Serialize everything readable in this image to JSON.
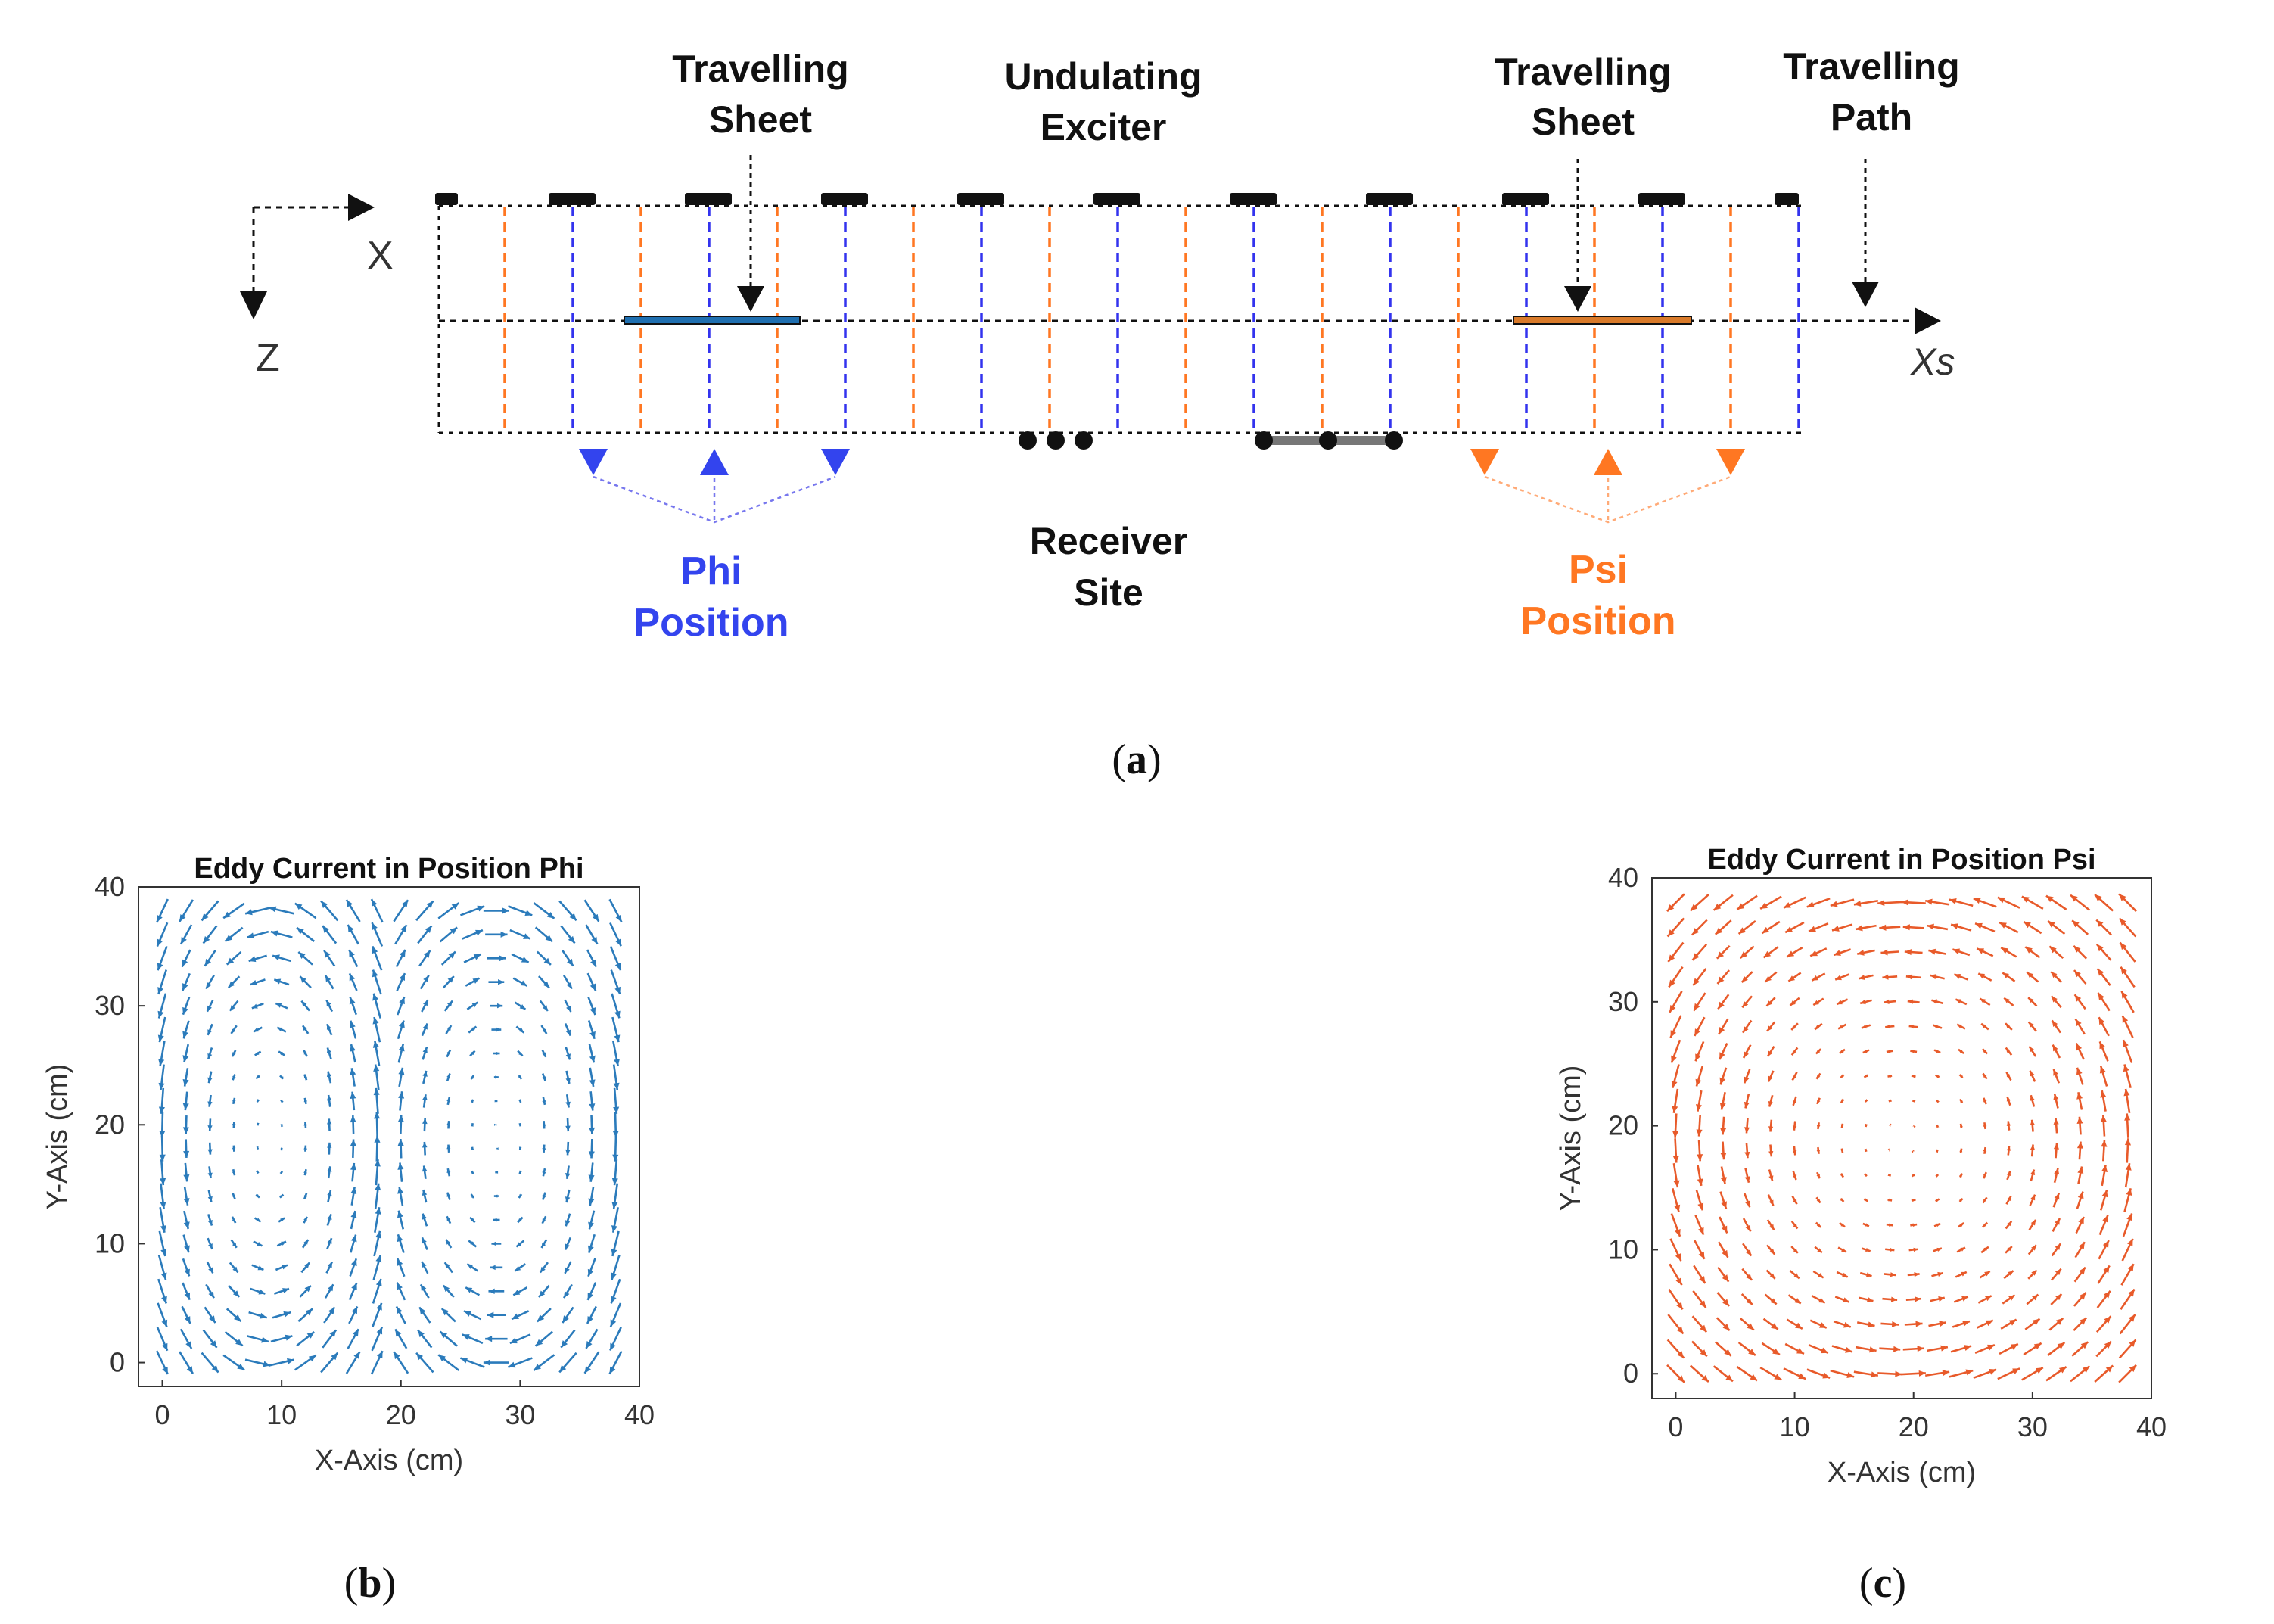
{
  "panel_a": {
    "labels": {
      "traveling_sheet_left_1": "Travelling",
      "traveling_sheet_left_2": "Sheet",
      "exciter_1": "Undulating",
      "exciter_2": "Exciter",
      "traveling_sheet_right_1": "Travelling",
      "traveling_sheet_right_2": "Sheet",
      "path_1": "Travelling",
      "path_2": "Path",
      "axis_x": "X",
      "axis_z": "Z",
      "axis_xs": "Xs",
      "phi_1": "Phi",
      "phi_2": "Position",
      "receiver_1": "Receiver",
      "receiver_2": "Site",
      "psi_1": "Psi",
      "psi_2": "Position"
    },
    "caption_open": "(",
    "caption_letter": "a",
    "caption_close": ")",
    "colors": {
      "phi": "#3333ee",
      "psi": "#ff7722",
      "ink": "#111111"
    }
  },
  "chart_data": [
    {
      "type": "quiver",
      "title": "Eddy Current in Position Phi",
      "xlabel": "X-Axis (cm)",
      "ylabel": "Y-Axis (cm)",
      "xlim": [
        -2,
        40
      ],
      "ylim": [
        -2,
        40
      ],
      "xticks": [
        "0",
        "10",
        "20",
        "30",
        "40"
      ],
      "yticks": [
        "0",
        "10",
        "20",
        "30",
        "40"
      ],
      "grid_step": 2,
      "grid_range": [
        0,
        38
      ],
      "pattern": "two counter-rotating vortices centered near x=8.5 and x=28.5, y=19",
      "color": "#2b7bbb",
      "caption_letter": "b"
    },
    {
      "type": "quiver",
      "title": "Eddy Current in Position Psi",
      "xlabel": "X-Axis (cm)",
      "ylabel": "Y-Axis (cm)",
      "xlim": [
        -2,
        40
      ],
      "ylim": [
        -2,
        40
      ],
      "xticks": [
        "0",
        "10",
        "20",
        "30",
        "40"
      ],
      "yticks": [
        "0",
        "10",
        "20",
        "30",
        "40"
      ],
      "grid_step": 2,
      "grid_range": [
        0,
        38
      ],
      "pattern": "single vortex centered near x=19, y=19",
      "color": "#e85a2a",
      "caption_letter": "c"
    }
  ]
}
